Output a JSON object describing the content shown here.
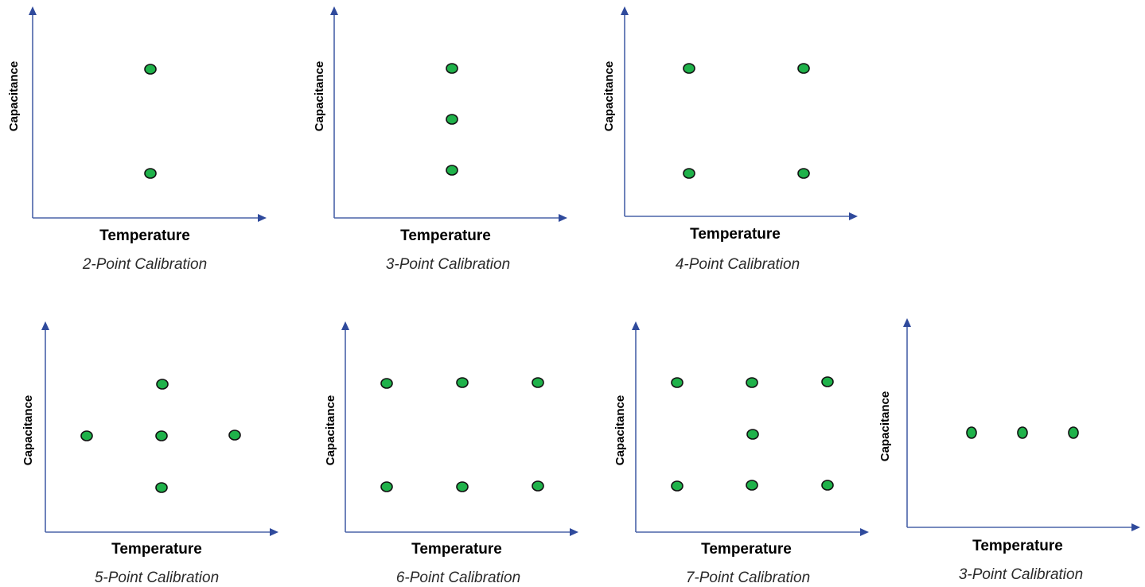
{
  "panels": [
    {
      "caption": "2-Point Calibration",
      "xlabel": "Temperature",
      "ylabel": "Capacitance"
    },
    {
      "caption": "3-Point Calibration",
      "xlabel": "Temperature",
      "ylabel": "Capacitance"
    },
    {
      "caption": "4-Point Calibration",
      "xlabel": "Temperature",
      "ylabel": "Capacitance"
    },
    {
      "caption": "5-Point Calibration",
      "xlabel": "Temperature",
      "ylabel": "Capacitance"
    },
    {
      "caption": "6-Point Calibration",
      "xlabel": "Temperature",
      "ylabel": "Capacitance"
    },
    {
      "caption": "7-Point Calibration",
      "xlabel": "Temperature",
      "ylabel": "Capacitance"
    },
    {
      "caption": "3-Point Calibration",
      "xlabel": "Temperature",
      "ylabel": "Capacitance"
    }
  ],
  "colors": {
    "axis": "#4a63a8",
    "arrow": "#2f4a9c",
    "point_fill": "#1fb24a",
    "point_stroke": "#111111"
  }
}
